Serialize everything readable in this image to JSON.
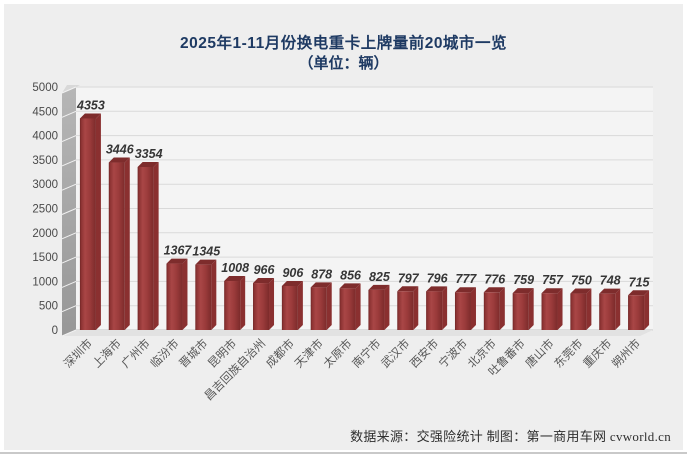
{
  "page": {
    "background_color": "#eeeeee",
    "frame_border_color": "#ffffff"
  },
  "chart_data": {
    "type": "bar",
    "title": "2025年1-11月份换电重卡上牌量前20城市一览",
    "subtitle": "（单位：辆）",
    "unit": "辆",
    "categories": [
      "深圳市",
      "上海市",
      "广州市",
      "临汾市",
      "晋城市",
      "昆明市",
      "昌吉回族自治州",
      "成都市",
      "天津市",
      "太原市",
      "南宁市",
      "武汉市",
      "西安市",
      "宁波市",
      "北京市",
      "吐鲁番市",
      "唐山市",
      "东莞市",
      "重庆市",
      "朔州市"
    ],
    "values": [
      4353,
      3446,
      3354,
      1367,
      1345,
      1008,
      966,
      906,
      878,
      856,
      825,
      797,
      796,
      777,
      776,
      759,
      757,
      750,
      748,
      715
    ],
    "ylim": [
      0,
      5000
    ],
    "ytick_step": 500,
    "yticks": [
      0,
      500,
      1000,
      1500,
      2000,
      2500,
      3000,
      3500,
      4000,
      4500,
      5000
    ],
    "grid": true,
    "legend": "none",
    "style_3d": true,
    "colors": {
      "bar_face": "#9b3b3b",
      "bar_face_light": "#a94646",
      "bar_face_dark": "#7c2b2b",
      "bar_edge_dark": "#6e2525",
      "bar_top": "#7e2c2c",
      "bar_side": "#8a3030",
      "wall": "#a8a8a8",
      "wall_cap": "#d8d8d8",
      "floor": "#e2e2e2",
      "plot_bg": "#f4f4f4",
      "gridline": "#d9d9d9",
      "baseline": "#c4c4c4",
      "title_color": "#1e3a63",
      "value_label_color": "#363636",
      "axis_label_color": "#575757"
    }
  },
  "footer": {
    "text": "数据来源：交强险统计  制图：第一商用车网 cvworld.cn"
  }
}
